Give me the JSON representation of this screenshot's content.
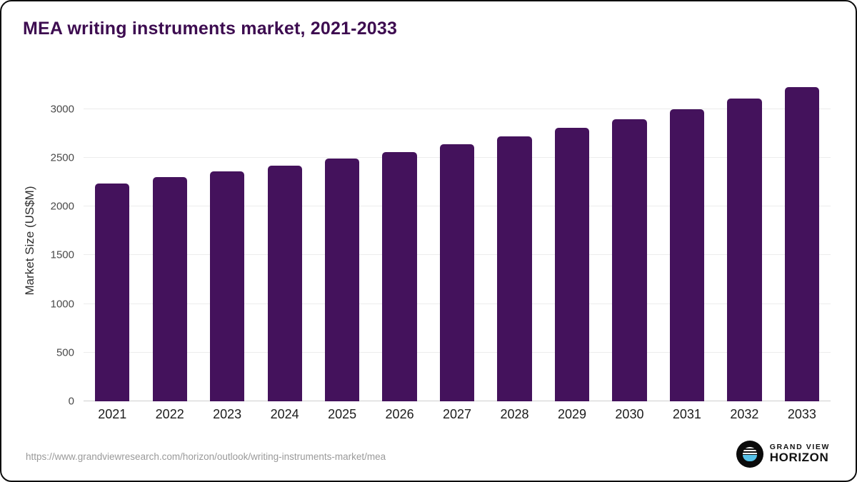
{
  "page": {
    "title": "MEA writing instruments market, 2021-2033"
  },
  "chart_data": {
    "type": "bar",
    "title": "MEA writing instruments market, 2021-2033",
    "categories": [
      "2021",
      "2022",
      "2023",
      "2024",
      "2025",
      "2026",
      "2027",
      "2028",
      "2029",
      "2030",
      "2031",
      "2032",
      "2033"
    ],
    "values": [
      2240,
      2300,
      2360,
      2420,
      2490,
      2560,
      2640,
      2720,
      2810,
      2900,
      3000,
      3110,
      3230
    ],
    "xlabel": "",
    "ylabel": "Market Size (US$M)",
    "ylim": [
      0,
      3300
    ],
    "yticks": [
      0,
      500,
      1000,
      1500,
      2000,
      2500,
      3000
    ],
    "bar_color": "#44125c",
    "grid": "horizontal",
    "legend_position": "none"
  },
  "footer": {
    "source_url": "https://www.grandviewresearch.com/horizon/outlook/writing-instruments-market/mea",
    "logo": {
      "line1": "GRAND VIEW",
      "line2": "HORIZON"
    }
  }
}
